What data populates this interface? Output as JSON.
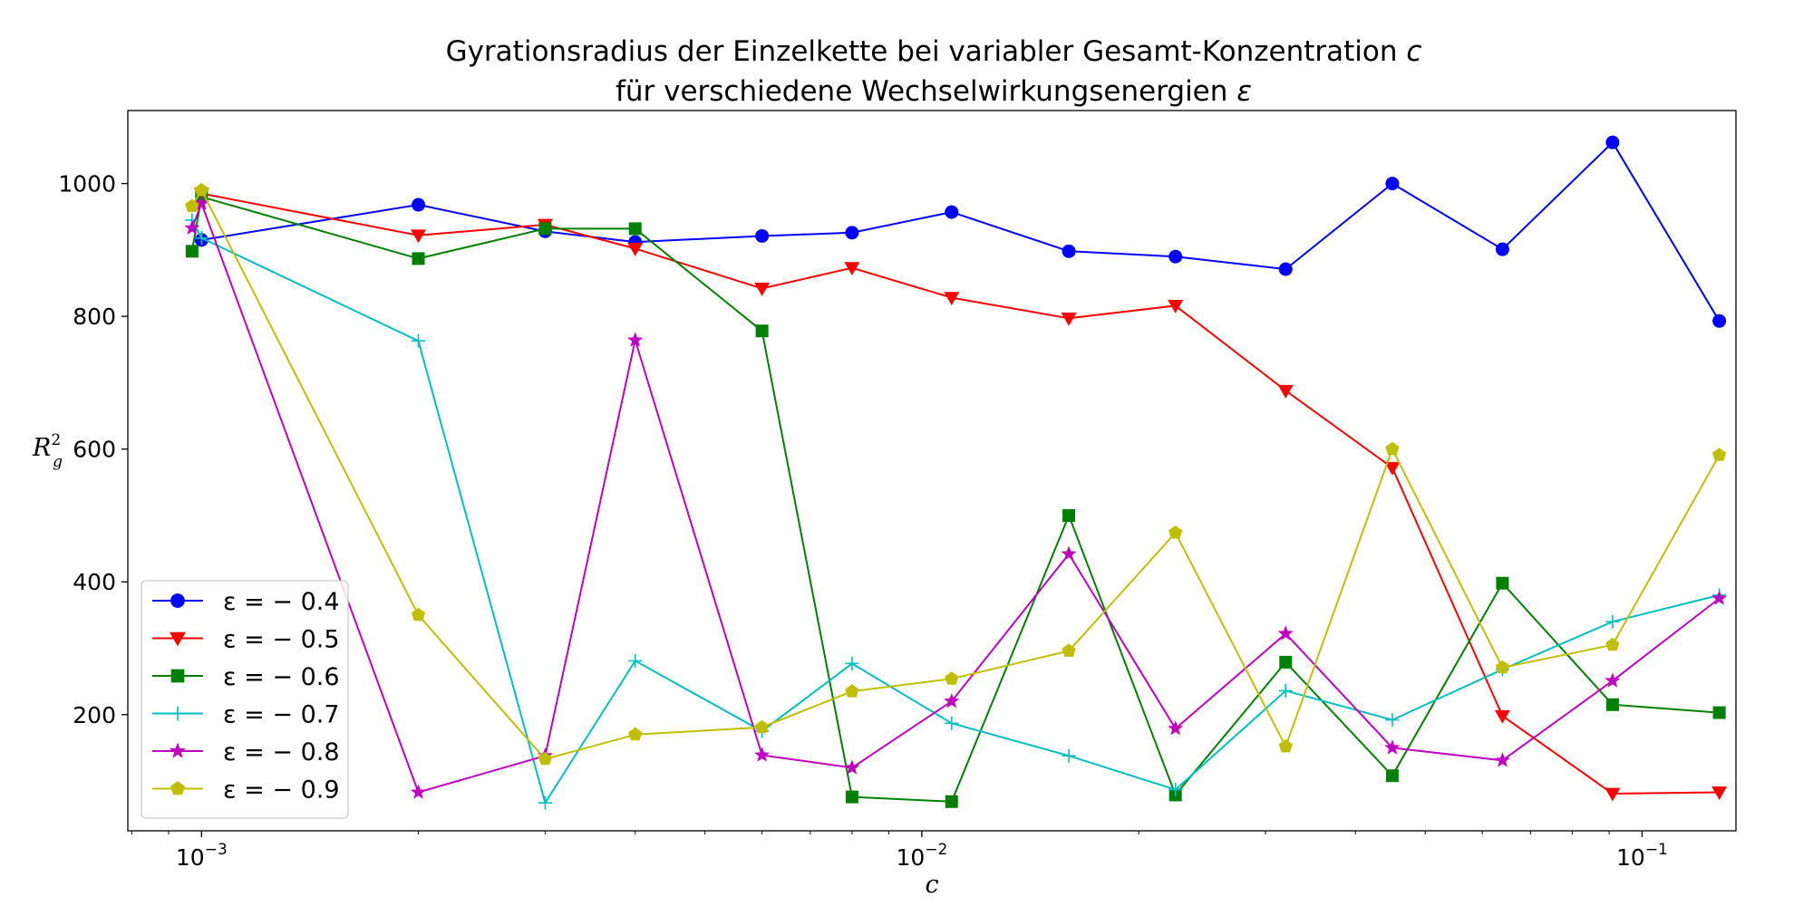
{
  "chart_data": {
    "type": "line",
    "title_line1": "Gyrationsradius der Einzelkette bei variabler Gesamt-Konzentration",
    "title_line1_symbol": "c",
    "title_line2": "für verschiedene Wechselwirkungsenergien",
    "title_line2_symbol": "ε",
    "xlabel": "c",
    "ylabel_base": "R",
    "ylabel_sub": "g",
    "ylabel_sup": "2",
    "x_scale": "log",
    "xlim": [
      0.00079,
      0.135
    ],
    "ylim": [
      25,
      1110
    ],
    "x_ticks": [
      {
        "value": 0.001,
        "label": "10",
        "exp": "−3"
      },
      {
        "value": 0.01,
        "label": "10",
        "exp": "−2"
      },
      {
        "value": 0.1,
        "label": "10",
        "exp": "−1"
      }
    ],
    "y_ticks": [
      200,
      400,
      600,
      800,
      1000
    ],
    "y_tick_labels": [
      "200",
      "400",
      "600",
      "800",
      "1000"
    ],
    "grid": false,
    "legend_position": "lower-left",
    "series": [
      {
        "name": "ε = − 0.4",
        "color": "#0000ff",
        "marker": "circle",
        "x": [
          0.001,
          0.002,
          0.003,
          0.004,
          0.006,
          0.008,
          0.011,
          0.016,
          0.0225,
          0.032,
          0.045,
          0.064,
          0.091,
          0.128
        ],
        "y": [
          915,
          968,
          928,
          912,
          921,
          926,
          957,
          898,
          890,
          871,
          1000,
          901,
          1062,
          793
        ]
      },
      {
        "name": "ε = − 0.5",
        "color": "#ff0000",
        "marker": "triangle-down",
        "x": [
          0.001,
          0.002,
          0.003,
          0.004,
          0.006,
          0.008,
          0.011,
          0.016,
          0.0225,
          0.032,
          0.045,
          0.064,
          0.091,
          0.128
        ],
        "y": [
          985,
          922,
          938,
          902,
          842,
          873,
          828,
          797,
          816,
          688,
          572,
          198,
          81,
          83
        ]
      },
      {
        "name": "ε = − 0.6",
        "color": "#008000",
        "marker": "square",
        "x": [
          0.00097,
          0.001,
          0.002,
          0.003,
          0.004,
          0.006,
          0.008,
          0.011,
          0.016,
          0.0225,
          0.032,
          0.045,
          0.064,
          0.091,
          0.128
        ],
        "y": [
          898,
          980,
          887,
          932,
          932,
          778,
          76,
          69,
          500,
          79,
          279,
          108,
          398,
          215,
          203
        ]
      },
      {
        "name": "ε = − 0.7",
        "color": "#00bfbf",
        "marker": "plus",
        "x": [
          0.00097,
          0.001,
          0.002,
          0.003,
          0.004,
          0.006,
          0.008,
          0.011,
          0.016,
          0.0225,
          0.032,
          0.045,
          0.064,
          0.091,
          0.128
        ],
        "y": [
          945,
          918,
          763,
          67,
          281,
          175,
          277,
          187,
          138,
          87,
          236,
          192,
          268,
          340,
          380
        ]
      },
      {
        "name": "ε = − 0.8",
        "color": "#bf00bf",
        "marker": "star",
        "x": [
          0.00097,
          0.001,
          0.002,
          0.003,
          0.004,
          0.006,
          0.008,
          0.011,
          0.016,
          0.0225,
          0.032,
          0.045,
          0.064,
          0.091,
          0.128
        ],
        "y": [
          933,
          970,
          83,
          138,
          764,
          139,
          120,
          220,
          442,
          179,
          322,
          150,
          131,
          251,
          375
        ]
      },
      {
        "name": "ε = − 0.9",
        "color": "#bfbf00",
        "marker": "pentagon",
        "x": [
          0.00097,
          0.001,
          0.002,
          0.003,
          0.004,
          0.006,
          0.008,
          0.011,
          0.016,
          0.0225,
          0.032,
          0.045,
          0.064,
          0.091,
          0.128
        ],
        "y": [
          966,
          990,
          350,
          133,
          170,
          181,
          235,
          254,
          296,
          474,
          152,
          600,
          271,
          305,
          591
        ]
      }
    ]
  }
}
